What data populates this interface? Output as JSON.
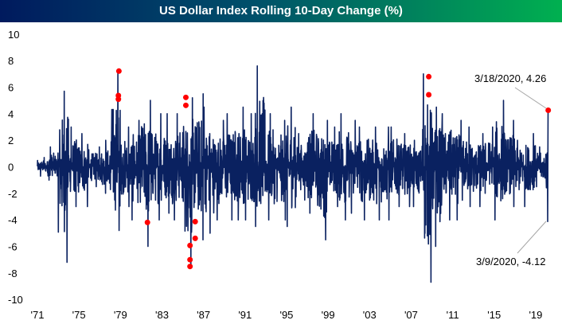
{
  "chart_data": {
    "type": "line",
    "title": "US Dollar Index Rolling 10-Day Change (%)",
    "xlabel": "",
    "ylabel": "",
    "ylim": [
      -10,
      10
    ],
    "xlim": [
      1971,
      2020.3
    ],
    "y_ticks": [
      "10",
      "8",
      "6",
      "4",
      "2",
      "0",
      "-2",
      "-4",
      "-6",
      "-8",
      "-10"
    ],
    "x_ticks": [
      {
        "year": 1971,
        "label": "'71"
      },
      {
        "year": 1975,
        "label": "'75"
      },
      {
        "year": 1979,
        "label": "'79"
      },
      {
        "year": 1983,
        "label": "'83"
      },
      {
        "year": 1987,
        "label": "'87"
      },
      {
        "year": 1991,
        "label": "'91"
      },
      {
        "year": 1995,
        "label": "'95"
      },
      {
        "year": 1999,
        "label": "'99"
      },
      {
        "year": 2003,
        "label": "'03"
      },
      {
        "year": 2007,
        "label": "'07"
      },
      {
        "year": 2011,
        "label": "'11"
      },
      {
        "year": 2015,
        "label": "'15"
      },
      {
        "year": 2019,
        "label": "'19"
      }
    ],
    "grid": false,
    "legend": "none",
    "series_color": "#0a2160",
    "highlight_color": "#ff0000",
    "series_yearly_range": {
      "years": [
        1971,
        1972,
        1973,
        1974,
        1975,
        1976,
        1977,
        1978,
        1979,
        1980,
        1981,
        1982,
        1983,
        1984,
        1985,
        1986,
        1987,
        1988,
        1989,
        1990,
        1991,
        1992,
        1993,
        1994,
        1995,
        1996,
        1997,
        1998,
        1999,
        2000,
        2001,
        2002,
        2003,
        2004,
        2005,
        2006,
        2007,
        2008,
        2009,
        2010,
        2011,
        2012,
        2013,
        2014,
        2015,
        2016,
        2017,
        2018,
        2019,
        2020
      ],
      "max": [
        0.7,
        1.5,
        5.7,
        3,
        2.5,
        1.5,
        2,
        7.2,
        3,
        3.5,
        5,
        4,
        4,
        4,
        5.2,
        5.5,
        4.5,
        3.5,
        4,
        4.5,
        4,
        7.6,
        4,
        3.5,
        4.5,
        2.5,
        4,
        3.5,
        3,
        4,
        3.5,
        3,
        3,
        3,
        3,
        2.5,
        2,
        7,
        4.5,
        4,
        3.5,
        3,
        2.5,
        3,
        5,
        3.5,
        2,
        2.5,
        1.5,
        4.26
      ],
      "min": [
        -0.7,
        -1,
        -7.2,
        -3,
        -3,
        -1.5,
        -2,
        -4.8,
        -3,
        -4,
        -6,
        -4,
        -3.5,
        -4,
        -7.5,
        -5.5,
        -5,
        -4,
        -4,
        -4,
        -4,
        -4.5,
        -4,
        -4,
        -4.5,
        -2.5,
        -3.5,
        -5.5,
        -3,
        -4,
        -3.5,
        -4,
        -4,
        -4,
        -3,
        -3,
        -3,
        -8.7,
        -6,
        -4,
        -4,
        -3,
        -3,
        -2,
        -4,
        -3,
        -3,
        -2.5,
        -1.5,
        -4.12
      ]
    },
    "highlighted_points": [
      {
        "x": 1978.85,
        "y": 7.21
      },
      {
        "x": 1978.8,
        "y": 5.37
      },
      {
        "x": 1978.8,
        "y": 5.09
      },
      {
        "x": 1981.6,
        "y": -4.19
      },
      {
        "x": 1985.3,
        "y": 5.23
      },
      {
        "x": 1985.3,
        "y": 4.63
      },
      {
        "x": 1985.7,
        "y": -5.93
      },
      {
        "x": 1985.7,
        "y": -7.0
      },
      {
        "x": 1985.7,
        "y": -7.51
      },
      {
        "x": 1986.2,
        "y": -4.13
      },
      {
        "x": 1986.2,
        "y": -5.39
      },
      {
        "x": 2008.7,
        "y": 6.79
      },
      {
        "x": 2008.7,
        "y": 5.43
      },
      {
        "x": 2020.21,
        "y": 4.26
      }
    ],
    "annotations": [
      {
        "text": "3/18/2020, 4.26",
        "x": 2020.21,
        "y": 4.26
      },
      {
        "text": "3/9/2020, -4.12",
        "x": 2020.19,
        "y": -4.12
      }
    ]
  }
}
